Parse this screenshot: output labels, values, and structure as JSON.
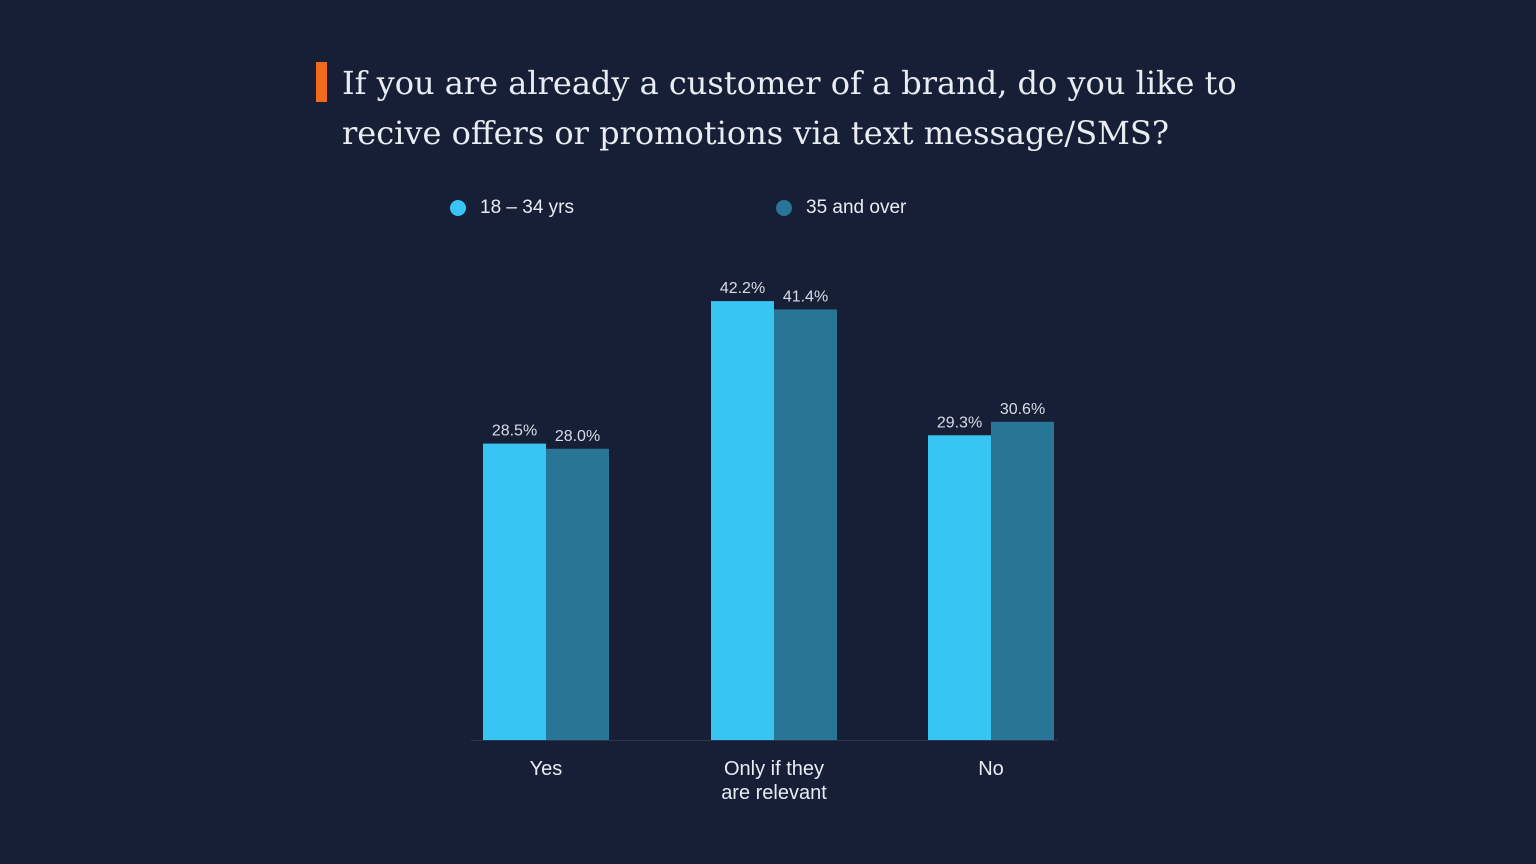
{
  "title": {
    "line1": "If you are already a customer of a brand, do you like to",
    "line2": "recive offers or promotions via text message/SMS?"
  },
  "colors": {
    "background": "#161f35",
    "accent": "#f26a1b",
    "series_18_34": "#38c5f4",
    "series_35_over": "#287597"
  },
  "chart_data": {
    "type": "bar",
    "title": "If you are already a customer of a brand, do you like to recive offers or promotions via text message/SMS?",
    "categories": [
      "Yes",
      "Only if they are relevant",
      "No"
    ],
    "category_lines": [
      [
        "Yes"
      ],
      [
        "Only if they",
        "are relevant"
      ],
      [
        "No"
      ]
    ],
    "series": [
      {
        "name": "18 – 34 yrs",
        "values": [
          28.5,
          42.2,
          29.3
        ],
        "labels": [
          "28.5%",
          "42.2%",
          "29.3%"
        ],
        "color": "#38c5f4"
      },
      {
        "name": "35 and over",
        "values": [
          28.0,
          41.4,
          30.6
        ],
        "labels": [
          "28.0%",
          "41.4%",
          "30.6%"
        ],
        "color": "#287597"
      }
    ],
    "unit": "%",
    "ylim": [
      0,
      50
    ],
    "grid": false,
    "legend_position": "top",
    "xlabel": "",
    "ylabel": ""
  }
}
